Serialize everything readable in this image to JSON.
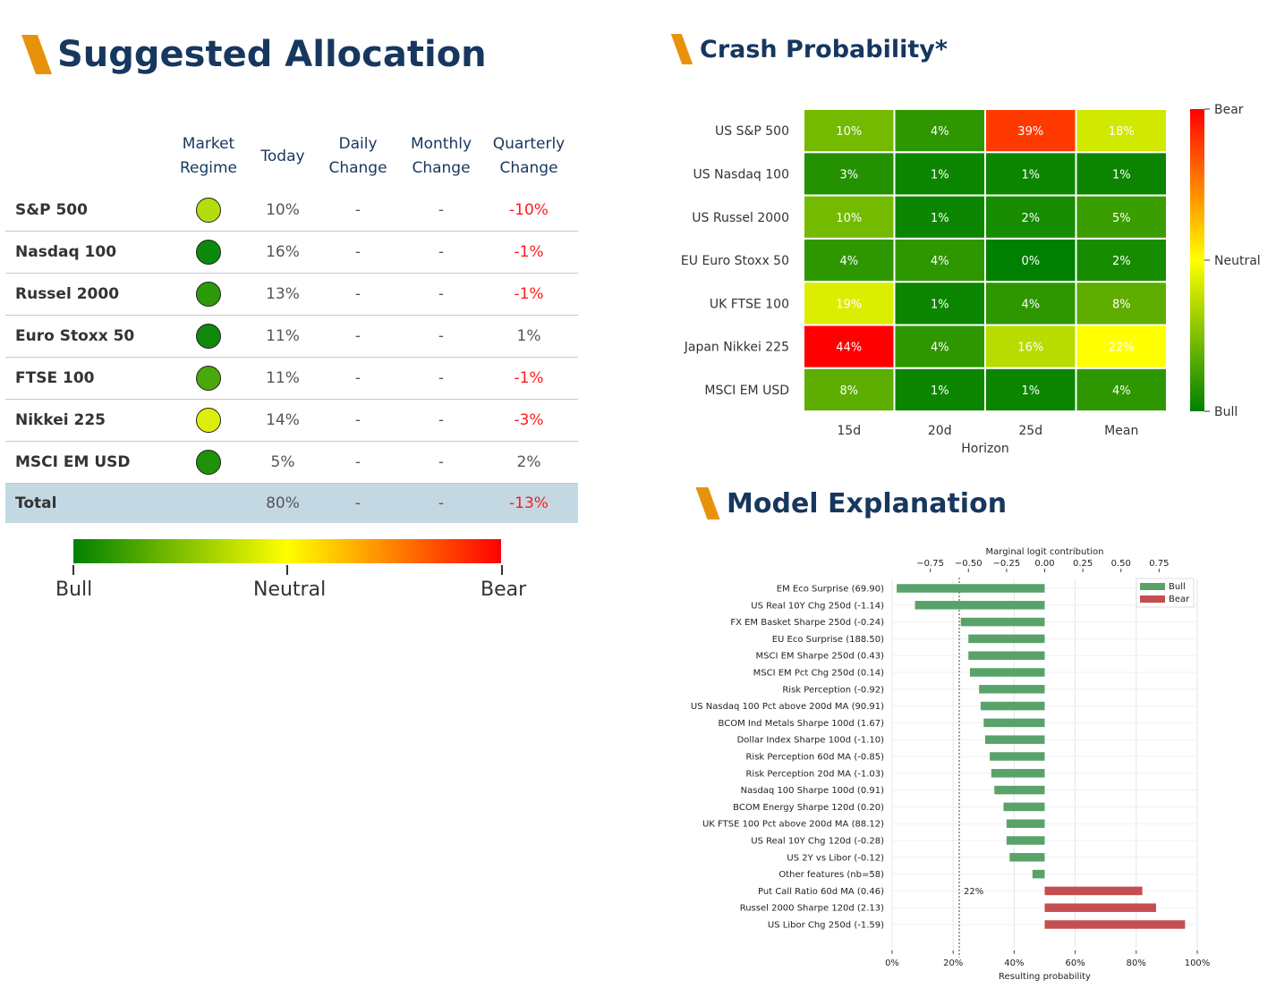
{
  "headers": {
    "allocation": "Suggested Allocation",
    "crash": "Crash Probability*",
    "model": "Model Explanation"
  },
  "allocation_table": {
    "columns": [
      [
        "Market",
        "Regime"
      ],
      [
        "Today"
      ],
      [
        "Daily",
        "Change"
      ],
      [
        "Monthly",
        "Change"
      ],
      [
        "Quarterly",
        "Change"
      ]
    ],
    "rows": [
      {
        "name": "S&P 500",
        "regime_color": "#b3dd0f",
        "today": "10%",
        "daily": "-",
        "monthly": "-",
        "quarterly": "-10%",
        "quarterly_negative": true
      },
      {
        "name": "Nasdaq 100",
        "regime_color": "#0a8a0a",
        "today": "16%",
        "daily": "-",
        "monthly": "-",
        "quarterly": "-1%",
        "quarterly_negative": true
      },
      {
        "name": "Russel 2000",
        "regime_color": "#2c9a08",
        "today": "13%",
        "daily": "-",
        "monthly": "-",
        "quarterly": "-1%",
        "quarterly_negative": true
      },
      {
        "name": "Euro Stoxx 50",
        "regime_color": "#10880a",
        "today": "11%",
        "daily": "-",
        "monthly": "-",
        "quarterly": "1%",
        "quarterly_negative": false
      },
      {
        "name": "FTSE 100",
        "regime_color": "#4aa80a",
        "today": "11%",
        "daily": "-",
        "monthly": "-",
        "quarterly": "-1%",
        "quarterly_negative": true
      },
      {
        "name": "Nikkei 225",
        "regime_color": "#dded0c",
        "today": "14%",
        "daily": "-",
        "monthly": "-",
        "quarterly": "-3%",
        "quarterly_negative": true
      },
      {
        "name": "MSCI EM USD",
        "regime_color": "#1f920a",
        "today": "5%",
        "daily": "-",
        "monthly": "-",
        "quarterly": "2%",
        "quarterly_negative": false
      }
    ],
    "total": {
      "name": "Total",
      "today": "80%",
      "daily": "-",
      "monthly": "-",
      "quarterly": "-13%",
      "quarterly_negative": true
    }
  },
  "regime_legend": {
    "labels": [
      "Bull",
      "Neutral",
      "Bear"
    ],
    "colors": [
      "#008000",
      "#ffff00",
      "#ff0000"
    ]
  },
  "chart_data": [
    {
      "type": "heatmap",
      "title": "Crash Probability*",
      "xlabel": "Horizon",
      "ylabel": "",
      "x": [
        "15d",
        "20d",
        "25d",
        "Mean"
      ],
      "y": [
        "US S&P 500",
        "US Nasdaq 100",
        "US Russel 2000",
        "EU Euro Stoxx 50",
        "UK FTSE 100",
        "Japan Nikkei 225",
        "MSCI EM USD"
      ],
      "values": [
        [
          10,
          4,
          39,
          18
        ],
        [
          3,
          1,
          1,
          1
        ],
        [
          10,
          1,
          2,
          5
        ],
        [
          4,
          4,
          0,
          2
        ],
        [
          19,
          1,
          4,
          8
        ],
        [
          44,
          4,
          16,
          22
        ],
        [
          8,
          1,
          1,
          4
        ]
      ],
      "value_format": "%",
      "colorbar": {
        "labels": [
          "Bear",
          "Neutral",
          "Bull"
        ],
        "colors": [
          "#ff0000",
          "#ffff00",
          "#008000"
        ]
      }
    },
    {
      "type": "bar",
      "orientation": "horizontal",
      "title": "",
      "top_xlabel": "Marginal logit contribution",
      "top_ticks": [
        "−0.75",
        "−0.50",
        "−0.25",
        "0.00",
        "0.25",
        "0.50",
        "0.75"
      ],
      "top_tick_values": [
        -0.75,
        -0.5,
        -0.25,
        0,
        0.25,
        0.5,
        0.75
      ],
      "xlabel": "Resulting probability",
      "bottom_ticks": [
        "0%",
        "20%",
        "40%",
        "60%",
        "80%",
        "100%"
      ],
      "bottom_tick_values": [
        0,
        20,
        40,
        60,
        80,
        100
      ],
      "xlim": [
        0,
        100
      ],
      "baseline_pct": 50,
      "threshold_pct": 22,
      "threshold_label": "22%",
      "legend": [
        {
          "name": "Bull",
          "color": "#59a26a"
        },
        {
          "name": "Bear",
          "color": "#c44e52"
        }
      ],
      "legend_position": "top-right",
      "categories": [
        "EM Eco Surprise (69.90)",
        "US Real 10Y Chg 250d (-1.14)",
        "FX EM Basket Sharpe 250d (-0.24)",
        "EU Eco Surprise (188.50)",
        "MSCI EM Sharpe 250d (0.43)",
        "MSCI EM Pct Chg 250d (0.14)",
        "Risk Perception (-0.92)",
        "US Nasdaq 100 Pct above 200d MA (90.91)",
        "BCOM Ind Metals Sharpe 100d (1.67)",
        "Dollar Index Sharpe 100d (-1.10)",
        "Risk Perception 60d MA (-0.85)",
        "Risk Perception 20d MA (-1.03)",
        "Nasdaq 100 Sharpe 100d (0.91)",
        "BCOM Energy Sharpe 120d (0.20)",
        "UK FTSE 100 Pct above 200d MA (88.12)",
        "US Real 10Y Chg 120d (-0.28)",
        "US 2Y vs Libor (-0.12)",
        "Other features (nb=58)",
        "Put Call Ratio 60d MA (0.46)",
        "Russel 2000 Sharpe 120d (2.13)",
        "US Libor Chg 250d (-1.59)"
      ],
      "values": [
        -0.97,
        -0.85,
        -0.55,
        -0.5,
        -0.5,
        -0.49,
        -0.43,
        -0.42,
        -0.4,
        -0.39,
        -0.36,
        -0.35,
        -0.33,
        -0.27,
        -0.25,
        -0.25,
        -0.23,
        -0.08,
        0.64,
        0.73,
        0.92
      ],
      "series_by_sign": {
        "negative": "Bull",
        "positive": "Bear"
      }
    }
  ]
}
